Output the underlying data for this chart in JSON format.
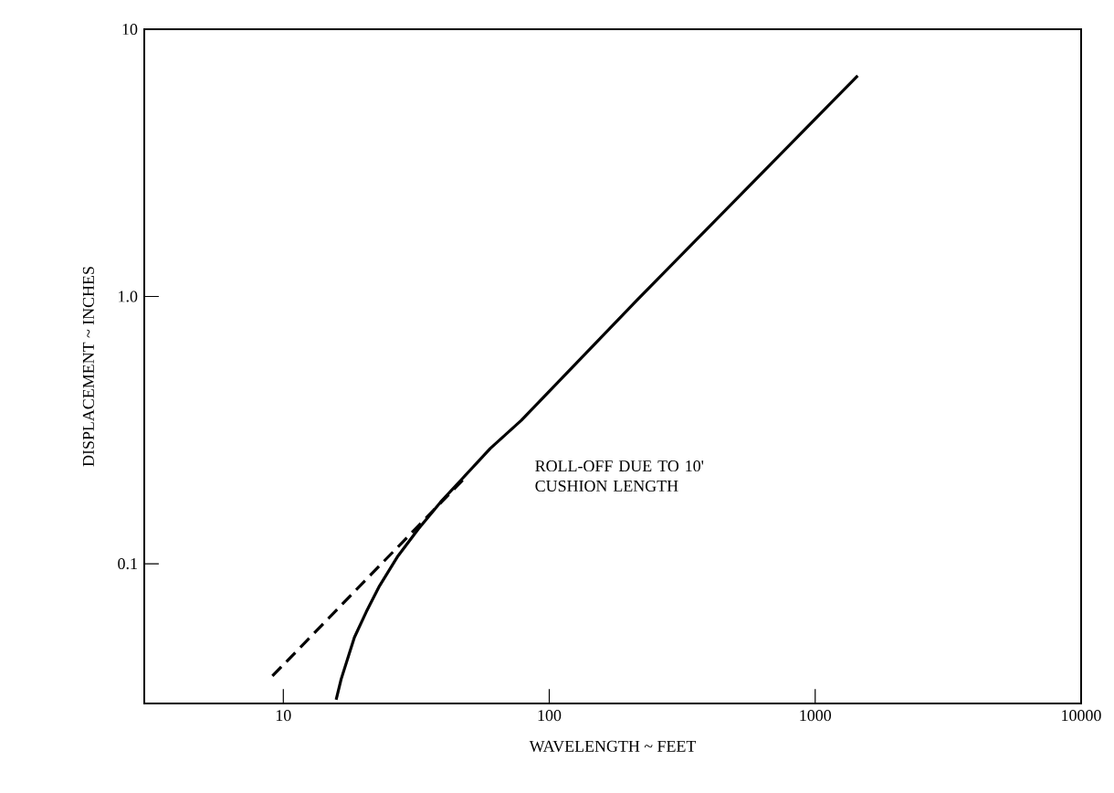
{
  "chart_data": {
    "type": "line",
    "xlabel": "WAVELENGTH ~ FEET",
    "ylabel": "DISPLACEMENT ~ INCHES",
    "log": "xy",
    "grid": false,
    "marker": "none",
    "xlim": [
      3,
      10000
    ],
    "xticks": [
      10,
      100,
      1000,
      10000
    ],
    "ylim": [
      0.03,
      10
    ],
    "yticks": [
      {
        "value": 0.1,
        "label": "0.1"
      },
      {
        "value": 1,
        "label": "1.0"
      },
      10
    ],
    "series": [
      {
        "color": "#000000",
        "line_style": "solid",
        "x": [
          15.8,
          16.5,
          18.5,
          20.5,
          23,
          27,
          32.2,
          39,
          47.5,
          60,
          78.5,
          214,
          1445
        ],
        "values": [
          0.031,
          0.037,
          0.053,
          0.066,
          0.0826,
          0.107,
          0.135,
          0.17,
          0.21,
          0.27,
          0.344,
          0.97,
          6.7
        ]
      },
      {
        "color": "#000000",
        "line_style": "dashed",
        "x": [
          9.1,
          48.3
        ],
        "values": [
          0.038,
          0.21
        ]
      }
    ],
    "annotations": [
      "ROLL-OFF DUE TO 10' CUSHION LENGTH"
    ]
  }
}
